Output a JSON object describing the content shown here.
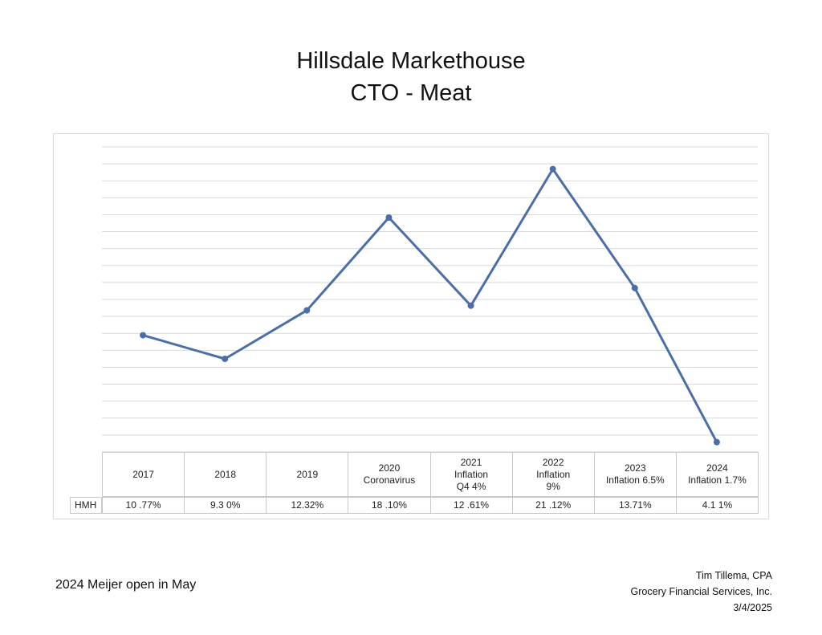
{
  "title_line1": "Hillsdale Markethouse",
  "title_line2": "CTO - Meat",
  "chart_data": {
    "type": "line",
    "categories": [
      "2017",
      "2018",
      "2019",
      "2020\nCoronavirus",
      "2021\nInflation\nQ4 4%",
      "2022\nInflation\n9%",
      "2023\nInflation 6.5%",
      "2024\nInflation 1.7%"
    ],
    "series": [
      {
        "name": "HMH",
        "values": [
          10.77,
          9.3,
          12.32,
          18.1,
          12.61,
          21.12,
          13.71,
          4.11
        ],
        "labels": [
          "10 .77%",
          "9.3 0%",
          "12.32%",
          "18 .10%",
          "12 .61%",
          "21 .12%",
          "13.71%",
          "4.1 1%"
        ]
      }
    ],
    "ylim": [
      3.5,
      22.5
    ],
    "grid": true,
    "line_color": "#4a6fa8",
    "xlabel": "",
    "ylabel": ""
  },
  "footnote": "2024 Meijer open in May",
  "credit": {
    "name": "Tim Tillema, CPA",
    "company": "Grocery Financial Services, Inc.",
    "date": "3/4/2025"
  }
}
